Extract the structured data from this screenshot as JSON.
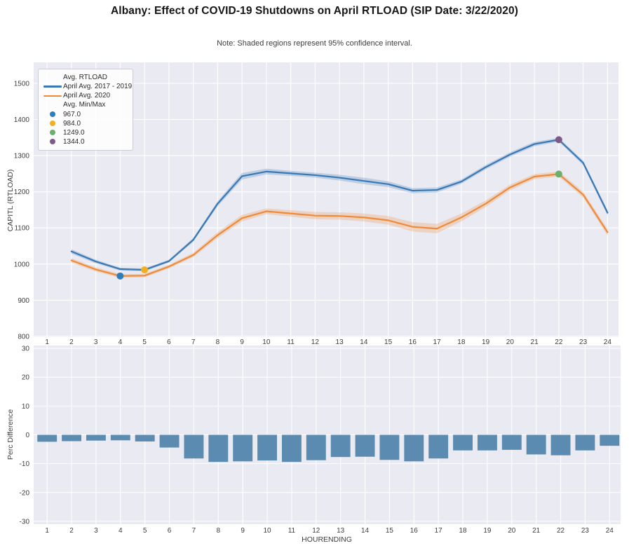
{
  "title": "Albany: Effect of COVID-19 Shutdowns on April RTLOAD (SIP Date: 3/22/2020)",
  "note": "Note: Shaded regions represent 95% confidence interval.",
  "colors": {
    "plot_background": "#eaeaf2",
    "gridline": "#ffffff",
    "hist_line": "#3878b4",
    "y2020_line": "#ee8a38",
    "hist_band": "rgba(56,120,180,0.25)",
    "y2020_band": "rgba(238,138,56,0.25)",
    "bar": "#5b8bb0",
    "marker_min_2020": "#2d7cbd",
    "marker_min_hist": "#f1b11f",
    "marker_max_2020": "#6cae6c",
    "marker_max_hist": "#7d5a87",
    "tick_text": "#3d3d3d",
    "title_text": "#151515"
  },
  "top_chart": {
    "legend": {
      "group1_title": "Avg. RTLOAD",
      "group2_title": "Avg. Min/Max"
    }
  },
  "chart_data": [
    {
      "type": "line",
      "ylabel": "CAPITL (RTLOAD)",
      "x": [
        2,
        3,
        4,
        5,
        6,
        7,
        8,
        9,
        10,
        11,
        12,
        13,
        14,
        15,
        16,
        17,
        18,
        19,
        20,
        21,
        22,
        23,
        24
      ],
      "series": [
        {
          "name": "April Avg. 2017 - 2019",
          "color": "#3878b4",
          "values": [
            1035,
            1007,
            986,
            984,
            1008,
            1067,
            1167,
            1243,
            1256,
            1251,
            1246,
            1239,
            1230,
            1221,
            1203,
            1205,
            1228,
            1268,
            1303,
            1332,
            1344,
            1280,
            1142
          ],
          "ci_halfwidth": [
            6,
            5,
            4,
            4,
            4,
            5,
            7,
            9,
            8,
            7,
            7,
            8,
            9,
            8,
            7,
            7,
            6,
            6,
            6,
            6,
            5,
            6,
            7
          ]
        },
        {
          "name": "April Avg. 2020",
          "color": "#ee8a38",
          "values": [
            1010,
            985,
            967,
            968,
            993,
            1025,
            1080,
            1127,
            1146,
            1140,
            1134,
            1133,
            1129,
            1121,
            1103,
            1098,
            1129,
            1167,
            1212,
            1242,
            1249,
            1192,
            1088
          ],
          "ci_halfwidth": [
            6,
            6,
            5,
            5,
            5,
            6,
            8,
            9,
            8,
            9,
            10,
            10,
            11,
            12,
            13,
            13,
            11,
            9,
            8,
            7,
            7,
            8,
            9
          ]
        }
      ],
      "markers": [
        {
          "label": "967.0",
          "value": 967,
          "hour": 4,
          "color": "#2d7cbd"
        },
        {
          "label": "984.0",
          "value": 984,
          "hour": 5,
          "color": "#f1b11f"
        },
        {
          "label": "1249.0",
          "value": 1249,
          "hour": 22,
          "color": "#6cae6c"
        },
        {
          "label": "1344.0",
          "value": 1344,
          "hour": 22,
          "color": "#7d5a87"
        }
      ],
      "xticks": [
        1,
        2,
        3,
        4,
        5,
        6,
        7,
        8,
        9,
        10,
        11,
        12,
        13,
        14,
        15,
        16,
        17,
        18,
        19,
        20,
        21,
        22,
        23,
        24
      ],
      "yticks": [
        800,
        900,
        1000,
        1100,
        1200,
        1300,
        1400,
        1500
      ],
      "ylim": [
        798,
        1558
      ],
      "xlim": [
        0.45,
        24.45
      ],
      "grid": true,
      "legend_position": "upper left"
    },
    {
      "type": "bar",
      "ylabel": "Perc Difference",
      "xlabel": "HOURENDING",
      "categories": [
        1,
        2,
        3,
        4,
        5,
        6,
        7,
        8,
        9,
        10,
        11,
        12,
        13,
        14,
        15,
        16,
        17,
        18,
        19,
        20,
        21,
        22,
        23,
        24
      ],
      "values": [
        -2.4,
        -2.2,
        -2.0,
        -1.9,
        -2.3,
        -4.4,
        -8.2,
        -9.4,
        -9.2,
        -8.9,
        -9.4,
        -8.8,
        -7.7,
        -7.6,
        -8.7,
        -9.2,
        -8.2,
        -5.4,
        -5.4,
        -5.2,
        -6.8,
        -7.1,
        -5.4,
        -3.8
      ],
      "bar_width": 0.8,
      "yticks": [
        30,
        20,
        10,
        0,
        -10,
        -20,
        -30
      ],
      "ylim": [
        -31,
        31
      ],
      "xlim": [
        0.45,
        24.45
      ],
      "grid": true
    }
  ]
}
